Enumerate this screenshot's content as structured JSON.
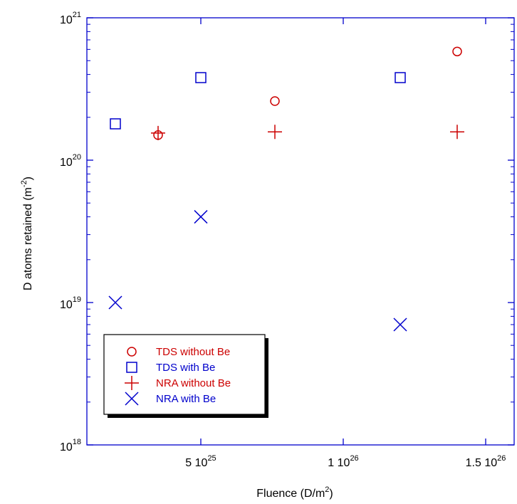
{
  "chart_data": {
    "type": "scatter",
    "title": "",
    "xlabel": {
      "base": "Fluence (D/m",
      "sup": "2",
      "end": ")"
    },
    "ylabel": {
      "base": "D atoms retained (m",
      "sup": "-2",
      "end": ")"
    },
    "xscale": "linear",
    "yscale": "log",
    "xlim": [
      1e+25,
      1.6e+26
    ],
    "ylim": [
      1e+18,
      1e+21
    ],
    "grid": false,
    "legend_position": "bottom-left",
    "x_ticks": [
      {
        "value": 5e+25,
        "base": "5 10",
        "exp": "25"
      },
      {
        "value": 1e+26,
        "base": "1 10",
        "exp": "26"
      },
      {
        "value": 1.5e+26,
        "base": "1.5 10",
        "exp": "26"
      }
    ],
    "y_ticks": [
      {
        "value": 1e+18,
        "base": "10",
        "exp": "18"
      },
      {
        "value": 1e+19,
        "base": "10",
        "exp": "19"
      },
      {
        "value": 1e+20,
        "base": "10",
        "exp": "20"
      },
      {
        "value": 1e+21,
        "base": "10",
        "exp": "21"
      }
    ],
    "series": [
      {
        "name": "TDS without Be",
        "marker": "circle",
        "color": "#cc0000",
        "x": [
          3.5e+25,
          7.6e+25,
          1.4e+26
        ],
        "y": [
          1.5e+20,
          2.6e+20,
          5.8e+20
        ]
      },
      {
        "name": "TDS with Be",
        "marker": "square",
        "color": "#0000cc",
        "x": [
          2e+25,
          5e+25,
          1.2e+26
        ],
        "y": [
          1.8e+20,
          3.8e+20,
          3.8e+20
        ]
      },
      {
        "name": "NRA without Be",
        "marker": "plus",
        "color": "#cc0000",
        "x": [
          3.5e+25,
          7.6e+25,
          1.4e+26
        ],
        "y": [
          1.55e+20,
          1.58e+20,
          1.58e+20
        ]
      },
      {
        "name": "NRA with Be",
        "marker": "cross",
        "color": "#0000cc",
        "x": [
          2e+25,
          5e+25,
          1.2e+26
        ],
        "y": [
          1e+19,
          4e+19,
          7e+18
        ]
      }
    ]
  }
}
